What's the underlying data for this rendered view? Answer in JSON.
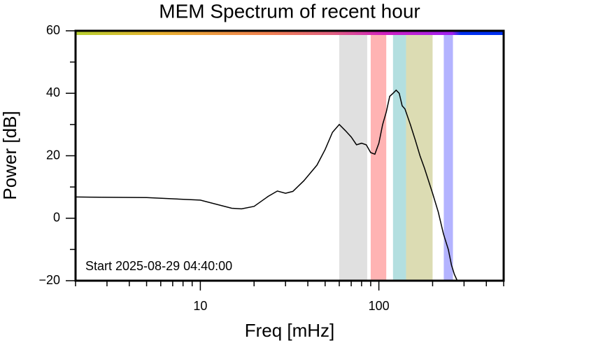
{
  "chart_data": {
    "type": "line",
    "title": "MEM Spectrum of recent hour",
    "xlabel": "Freq [mHz]",
    "ylabel": "Power [dB]",
    "annotation": "Start 2025-08-29 04:40:00",
    "log_x": true,
    "x": [
      2,
      5,
      10,
      15,
      17,
      20,
      24,
      27,
      30,
      33,
      38,
      45,
      50,
      55,
      60,
      65,
      70,
      75,
      80,
      85,
      90,
      95,
      100,
      105,
      110,
      115,
      120,
      125,
      130,
      135,
      140,
      150,
      160,
      170,
      180,
      200,
      215,
      230,
      245,
      255,
      265,
      275
    ],
    "series": [
      {
        "color": "#000000",
        "values": [
          6.8,
          6.6,
          5.8,
          3.2,
          3,
          3.8,
          7,
          8.7,
          8,
          8.6,
          12,
          17,
          22,
          27.5,
          30,
          28,
          26,
          23.5,
          24,
          23.5,
          21,
          20.5,
          24,
          30,
          34,
          39,
          40,
          41,
          40,
          36,
          35,
          30,
          25,
          20,
          16,
          8,
          2,
          -5,
          -10,
          -15,
          -18,
          -20
        ]
      }
    ],
    "bands": [
      {
        "x0": 60,
        "x1": 86,
        "color": "#e0e0e0"
      },
      {
        "x0": 90,
        "x1": 110,
        "color": "#ffb3b3"
      },
      {
        "x0": 120,
        "x1": 142,
        "color": "#b3dfe0"
      },
      {
        "x0": 142,
        "x1": 200,
        "color": "#dcdcb3"
      },
      {
        "x0": 231,
        "x1": 260,
        "color": "#b3b3ff"
      }
    ],
    "xlim": [
      2,
      500
    ],
    "ylim": [
      -20,
      60
    ],
    "xticks": [
      10,
      100
    ],
    "xminor": [
      2,
      3,
      4,
      5,
      6,
      7,
      8,
      9,
      20,
      30,
      40,
      50,
      60,
      70,
      80,
      90,
      200,
      300,
      400,
      500
    ],
    "yticks": [
      {
        "value": -20,
        "label": "−20"
      },
      0,
      20,
      40,
      60
    ],
    "yminor": [
      -10,
      10,
      30,
      50
    ]
  }
}
